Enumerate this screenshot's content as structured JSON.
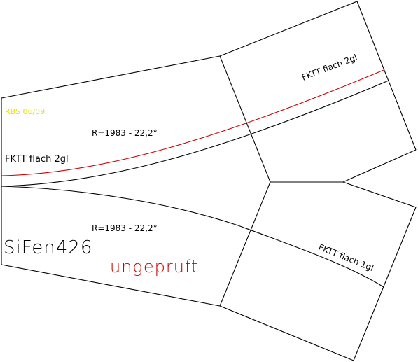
{
  "labels": {
    "rbs": "RBS 06/09",
    "radius_upper": "R=1983 - 22,2°",
    "radius_lower": "R=1983 - 22,2°",
    "track_upper_left": "FKTT flach 2gl",
    "track_upper_right": "FKTT flach 2gl",
    "track_lower_right": "FKTT flach 1gl",
    "sifen": "SiFen426",
    "status": "ungepruft"
  },
  "colors": {
    "lines": "#000000",
    "track_highlight": "#cc0000",
    "rbs": "#e6e600",
    "status": "#cc0000",
    "background": "#ffffff"
  }
}
